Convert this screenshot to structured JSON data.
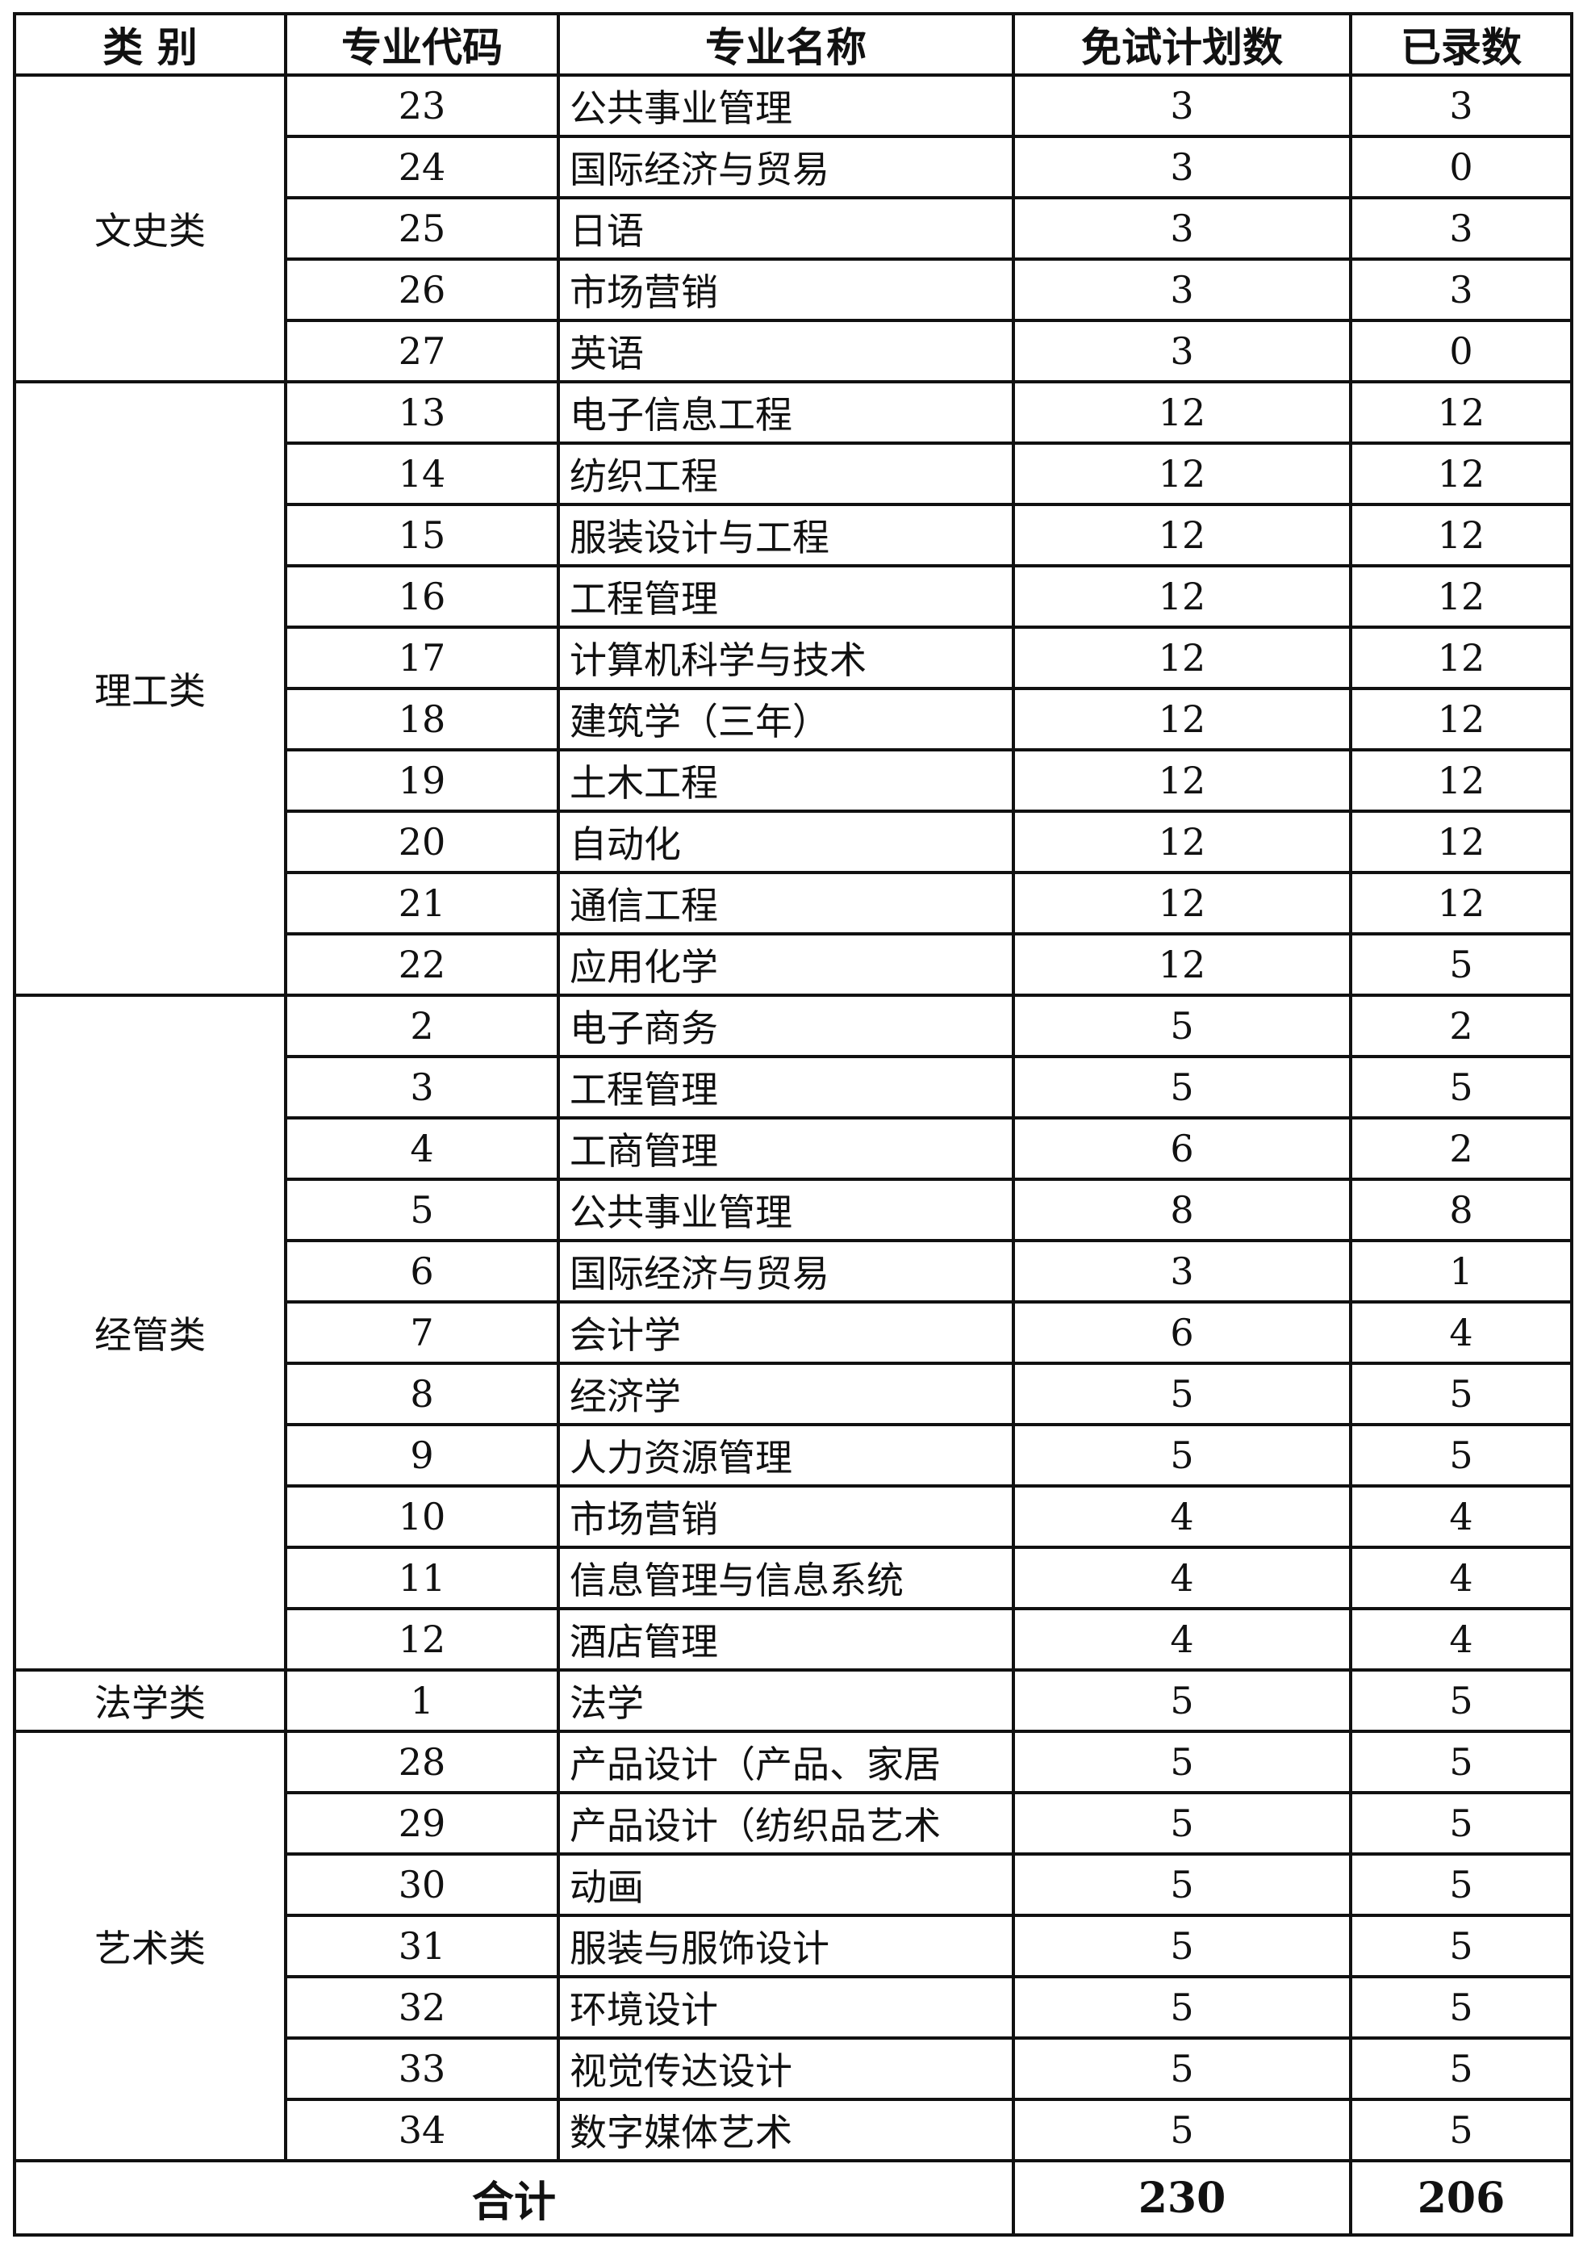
{
  "headers": [
    "类 别",
    "专业代码",
    "专业名称",
    "免试计划数",
    "已录数"
  ],
  "groups": [
    {
      "category": "文史类",
      "rows": [
        {
          "code": "23",
          "name": "公共事业管理",
          "plan": "3",
          "admitted": "3"
        },
        {
          "code": "24",
          "name": "国际经济与贸易",
          "plan": "3",
          "admitted": "0"
        },
        {
          "code": "25",
          "name": "日语",
          "plan": "3",
          "admitted": "3"
        },
        {
          "code": "26",
          "name": "市场营销",
          "plan": "3",
          "admitted": "3"
        },
        {
          "code": "27",
          "name": "英语",
          "plan": "3",
          "admitted": "0"
        }
      ]
    },
    {
      "category": "理工类",
      "rows": [
        {
          "code": "13",
          "name": "电子信息工程",
          "plan": "12",
          "admitted": "12"
        },
        {
          "code": "14",
          "name": "纺织工程",
          "plan": "12",
          "admitted": "12"
        },
        {
          "code": "15",
          "name": "服装设计与工程",
          "plan": "12",
          "admitted": "12"
        },
        {
          "code": "16",
          "name": "工程管理",
          "plan": "12",
          "admitted": "12"
        },
        {
          "code": "17",
          "name": "计算机科学与技术",
          "plan": "12",
          "admitted": "12"
        },
        {
          "code": "18",
          "name": "建筑学（三年）",
          "plan": "12",
          "admitted": "12"
        },
        {
          "code": "19",
          "name": "土木工程",
          "plan": "12",
          "admitted": "12"
        },
        {
          "code": "20",
          "name": "自动化",
          "plan": "12",
          "admitted": "12"
        },
        {
          "code": "21",
          "name": "通信工程",
          "plan": "12",
          "admitted": "12"
        },
        {
          "code": "22",
          "name": "应用化学",
          "plan": "12",
          "admitted": "5"
        }
      ]
    },
    {
      "category": "经管类",
      "rows": [
        {
          "code": "2",
          "name": "电子商务",
          "plan": "5",
          "admitted": "2"
        },
        {
          "code": "3",
          "name": "工程管理",
          "plan": "5",
          "admitted": "5"
        },
        {
          "code": "4",
          "name": "工商管理",
          "plan": "6",
          "admitted": "2"
        },
        {
          "code": "5",
          "name": "公共事业管理",
          "plan": "8",
          "admitted": "8"
        },
        {
          "code": "6",
          "name": "国际经济与贸易",
          "plan": "3",
          "admitted": "1"
        },
        {
          "code": "7",
          "name": "会计学",
          "plan": "6",
          "admitted": "4"
        },
        {
          "code": "8",
          "name": "经济学",
          "plan": "5",
          "admitted": "5"
        },
        {
          "code": "9",
          "name": "人力资源管理",
          "plan": "5",
          "admitted": "5"
        },
        {
          "code": "10",
          "name": "市场营销",
          "plan": "4",
          "admitted": "4"
        },
        {
          "code": "11",
          "name": "信息管理与信息系统",
          "plan": "4",
          "admitted": "4"
        },
        {
          "code": "12",
          "name": "酒店管理",
          "plan": "4",
          "admitted": "4"
        }
      ]
    },
    {
      "category": "法学类",
      "rows": [
        {
          "code": "1",
          "name": "法学",
          "plan": "5",
          "admitted": "5"
        }
      ]
    },
    {
      "category": "艺术类",
      "rows": [
        {
          "code": "28",
          "name": "产品设计（产品、家居",
          "plan": "5",
          "admitted": "5"
        },
        {
          "code": "29",
          "name": "产品设计（纺织品艺术",
          "plan": "5",
          "admitted": "5"
        },
        {
          "code": "30",
          "name": "动画",
          "plan": "5",
          "admitted": "5"
        },
        {
          "code": "31",
          "name": "服装与服饰设计",
          "plan": "5",
          "admitted": "5"
        },
        {
          "code": "32",
          "name": "环境设计",
          "plan": "5",
          "admitted": "5"
        },
        {
          "code": "33",
          "name": "视觉传达设计",
          "plan": "5",
          "admitted": "5"
        },
        {
          "code": "34",
          "name": "数字媒体艺术",
          "plan": "5",
          "admitted": "5"
        }
      ]
    }
  ],
  "total": {
    "label": "合计",
    "plan": "230",
    "admitted": "206"
  }
}
